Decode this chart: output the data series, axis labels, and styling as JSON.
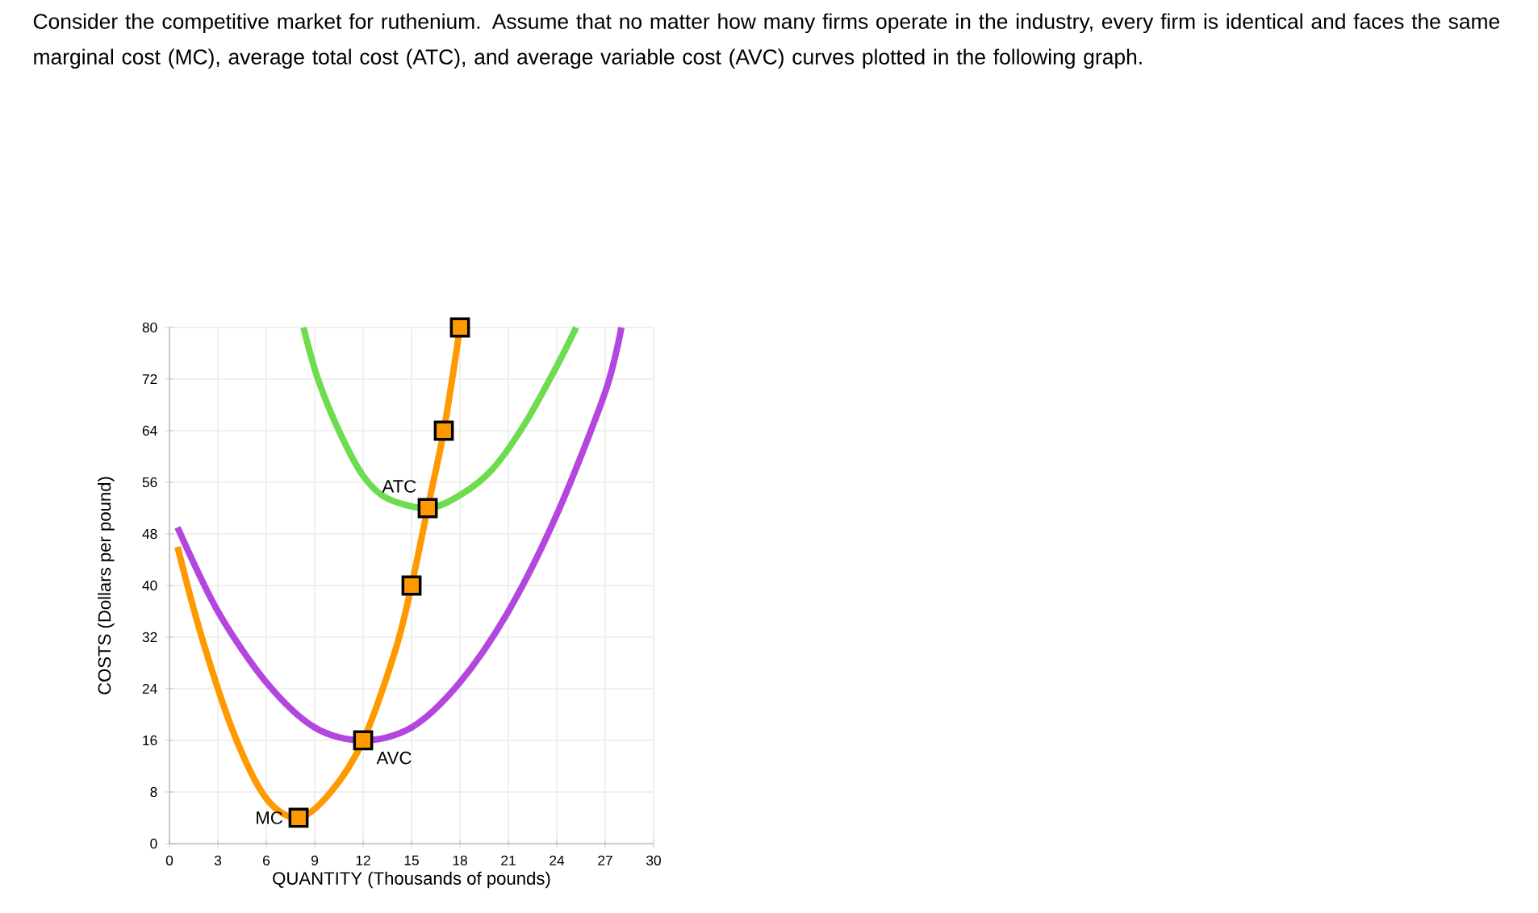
{
  "chart_data": {
    "type": "line",
    "title": "Consider the competitive market for ruthenium. Assume that no matter how many firms operate in the industry, every firm is identical and faces the same marginal cost (MC), average total cost (ATC), and average variable cost (AVC) curves plotted in the following graph.",
    "xlabel": "QUANTITY (Thousands of pounds)",
    "ylabel": "COSTS (Dollars per pound)",
    "xlim": [
      0,
      30
    ],
    "ylim": [
      0,
      80
    ],
    "xticks": [
      0,
      3,
      6,
      9,
      12,
      15,
      18,
      21,
      24,
      27,
      30
    ],
    "yticks": [
      0,
      8,
      16,
      24,
      32,
      40,
      48,
      56,
      64,
      72,
      80
    ],
    "grid": true,
    "marker": "none",
    "line_style": "solid",
    "series": [
      {
        "color": "#ff9900",
        "x": [
          0.5,
          2,
          4,
          6,
          8,
          10,
          12,
          14,
          15,
          16,
          17,
          18
        ],
        "values": [
          46,
          32,
          17,
          7,
          4,
          8,
          16,
          30,
          40,
          52,
          64,
          80
        ]
      },
      {
        "color": "#b446e0",
        "x": [
          0.5,
          3,
          6,
          9,
          12,
          15,
          18,
          21,
          24,
          27,
          28
        ],
        "values": [
          49,
          36,
          25,
          18,
          16,
          18,
          25,
          36,
          51,
          70,
          80
        ]
      },
      {
        "color": "#6ddc4f",
        "x": [
          8.3,
          9.2,
          10.5,
          12,
          13.5,
          16,
          18,
          20,
          22,
          24,
          25.2
        ],
        "values": [
          80,
          72,
          64,
          57,
          53.5,
          52,
          54,
          58,
          65,
          74,
          80
        ]
      },
      {
        "type": "scatter",
        "marker": "square",
        "color": "#ff9900",
        "x": [
          8,
          12,
          15,
          16,
          17,
          18
        ],
        "values": [
          4,
          16,
          40,
          52,
          64,
          80
        ]
      }
    ],
    "annotations": [
      {
        "text": "MC",
        "x": 8,
        "y": 4
      },
      {
        "text": "ATC",
        "x": 16,
        "y": 52
      },
      {
        "text": "AVC",
        "x": 12,
        "y": 16
      }
    ]
  }
}
